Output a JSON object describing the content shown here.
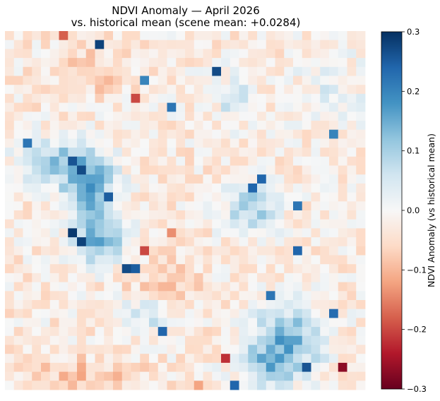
{
  "chart_data": {
    "type": "heatmap",
    "title": "NDVI Anomaly — April 2026",
    "subtitle": "vs. historical mean  (scene mean: +0.0284)",
    "colorbar": {
      "label": "NDVI Anomaly (vs historical mean)",
      "range": [
        -0.3,
        0.3
      ],
      "colormap": "RdBu",
      "ticks": [
        0.3,
        0.2,
        0.1,
        0.0,
        -0.1,
        -0.2,
        -0.3
      ],
      "tick_labels": [
        "0.3",
        "0.2",
        "0.1",
        "0.0",
        "−0.1",
        "−0.2",
        "−0.3"
      ]
    },
    "grid": {
      "rows": 40,
      "cols": 40,
      "approx_scene_mean": 0.0284,
      "notable_cells": [
        {
          "row": 0,
          "col": 6,
          "value": -0.18
        },
        {
          "row": 1,
          "col": 10,
          "value": 0.28
        },
        {
          "row": 4,
          "col": 23,
          "value": 0.27
        },
        {
          "row": 5,
          "col": 15,
          "value": 0.2
        },
        {
          "row": 7,
          "col": 14,
          "value": -0.2
        },
        {
          "row": 8,
          "col": 18,
          "value": 0.22
        },
        {
          "row": 11,
          "col": 36,
          "value": 0.2
        },
        {
          "row": 12,
          "col": 2,
          "value": 0.22
        },
        {
          "row": 14,
          "col": 7,
          "value": 0.26
        },
        {
          "row": 15,
          "col": 8,
          "value": 0.27
        },
        {
          "row": 16,
          "col": 28,
          "value": 0.24
        },
        {
          "row": 17,
          "col": 27,
          "value": 0.24
        },
        {
          "row": 18,
          "col": 11,
          "value": 0.25
        },
        {
          "row": 19,
          "col": 32,
          "value": 0.22
        },
        {
          "row": 22,
          "col": 18,
          "value": -0.14
        },
        {
          "row": 22,
          "col": 7,
          "value": 0.29
        },
        {
          "row": 23,
          "col": 8,
          "value": 0.28
        },
        {
          "row": 24,
          "col": 15,
          "value": -0.2
        },
        {
          "row": 24,
          "col": 32,
          "value": 0.24
        },
        {
          "row": 26,
          "col": 13,
          "value": 0.27
        },
        {
          "row": 26,
          "col": 14,
          "value": 0.25
        },
        {
          "row": 29,
          "col": 29,
          "value": 0.22
        },
        {
          "row": 31,
          "col": 36,
          "value": 0.23
        },
        {
          "row": 33,
          "col": 17,
          "value": 0.24
        },
        {
          "row": 36,
          "col": 24,
          "value": -0.22
        },
        {
          "row": 37,
          "col": 37,
          "value": -0.27
        },
        {
          "row": 37,
          "col": 33,
          "value": 0.26
        },
        {
          "row": 39,
          "col": 25,
          "value": 0.24
        },
        {
          "row": 39,
          "col": 21,
          "value": -0.12
        }
      ]
    }
  }
}
